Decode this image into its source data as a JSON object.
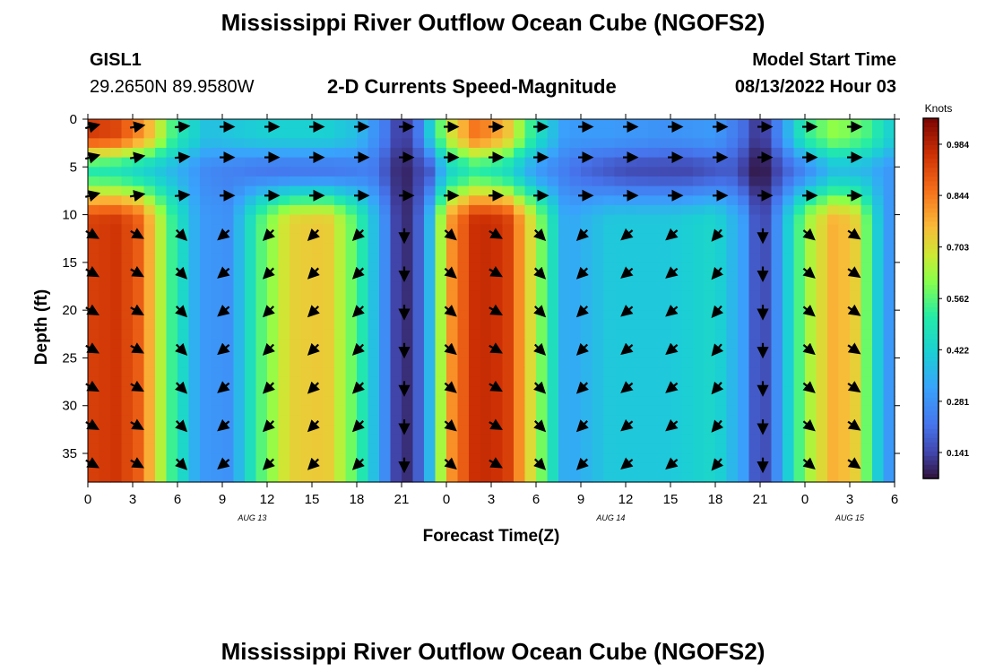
{
  "header": {
    "title": "Mississippi River Outflow Ocean Cube (NGOFS2)",
    "station": "GISL1",
    "coords": "29.2650N  89.9580W",
    "subtitle": "2-D Currents Speed-Magnitude",
    "model_label": "Model Start Time",
    "model_time": "08/13/2022 Hour 03",
    "footer_title": "Mississippi River Outflow Ocean Cube (NGOFS2)"
  },
  "chart_data": {
    "type": "heatmap",
    "xlabel": "Forecast Time(Z)",
    "ylabel": "Depth (ft)",
    "xlim": [
      0,
      54
    ],
    "ylim": [
      0,
      38
    ],
    "x_ticks": [
      0,
      3,
      6,
      9,
      12,
      15,
      18,
      21,
      24,
      27,
      30,
      33,
      36,
      39,
      42,
      45,
      48,
      51,
      54
    ],
    "x_tick_labels": [
      "0",
      "3",
      "6",
      "9",
      "12",
      "15",
      "18",
      "21",
      "0",
      "3",
      "6",
      "9",
      "12",
      "15",
      "18",
      "21",
      "0",
      "3",
      "6"
    ],
    "y_ticks": [
      0,
      5,
      10,
      15,
      20,
      25,
      30,
      35
    ],
    "y_tick_labels": [
      "0",
      "5",
      "10",
      "15",
      "20",
      "25",
      "30",
      "35"
    ],
    "date_labels": [
      {
        "text": "AUG 13",
        "x": 11
      },
      {
        "text": "AUG 14",
        "x": 35
      },
      {
        "text": "AUG 15",
        "x": 51
      }
    ],
    "colorbar": {
      "unit": "Knots",
      "min": 0.07,
      "max": 1.055,
      "tick_values": [
        0.141,
        0.281,
        0.422,
        0.562,
        0.703,
        0.844,
        0.984
      ],
      "tick_labels": [
        "0.141",
        "0.281",
        "0.422",
        "0.562",
        "0.703",
        "0.844",
        "0.984"
      ]
    },
    "time_profile": [
      [
        0,
        0.93
      ],
      [
        2,
        0.95
      ],
      [
        3.5,
        0.88
      ],
      [
        5.5,
        0.55
      ],
      [
        7.5,
        0.3
      ],
      [
        9.5,
        0.28
      ],
      [
        11.5,
        0.55
      ],
      [
        13.5,
        0.72
      ],
      [
        16,
        0.74
      ],
      [
        18,
        0.55
      ],
      [
        20,
        0.25
      ],
      [
        21,
        0.07
      ],
      [
        22.5,
        0.22
      ],
      [
        24,
        0.78
      ],
      [
        26,
        0.97
      ],
      [
        28,
        0.95
      ],
      [
        30,
        0.65
      ],
      [
        32,
        0.32
      ],
      [
        35,
        0.4
      ],
      [
        39,
        0.4
      ],
      [
        42,
        0.44
      ],
      [
        44,
        0.3
      ],
      [
        45,
        0.1
      ],
      [
        46,
        0.25
      ],
      [
        48,
        0.62
      ],
      [
        50,
        0.78
      ],
      [
        51.5,
        0.72
      ],
      [
        53,
        0.38
      ],
      [
        54,
        0.25
      ]
    ],
    "surface_profile": [
      [
        0,
        0.94
      ],
      [
        2,
        0.92
      ],
      [
        4,
        0.78
      ],
      [
        6,
        0.5
      ],
      [
        8,
        0.38
      ],
      [
        10,
        0.4
      ],
      [
        12,
        0.42
      ],
      [
        14,
        0.42
      ],
      [
        16,
        0.42
      ],
      [
        18,
        0.38
      ],
      [
        20,
        0.22
      ],
      [
        21,
        0.1
      ],
      [
        22,
        0.2
      ],
      [
        24,
        0.66
      ],
      [
        26,
        0.86
      ],
      [
        28,
        0.76
      ],
      [
        30,
        0.48
      ],
      [
        32,
        0.3
      ],
      [
        35,
        0.3
      ],
      [
        39,
        0.28
      ],
      [
        42,
        0.3
      ],
      [
        44,
        0.2
      ],
      [
        45,
        0.09
      ],
      [
        46,
        0.22
      ],
      [
        48,
        0.52
      ],
      [
        50,
        0.62
      ],
      [
        52,
        0.56
      ],
      [
        54,
        0.4
      ]
    ],
    "mid_profile": [
      [
        0,
        0.5
      ],
      [
        2,
        0.48
      ],
      [
        4,
        0.42
      ],
      [
        6,
        0.35
      ],
      [
        8,
        0.26
      ],
      [
        12,
        0.22
      ],
      [
        16,
        0.22
      ],
      [
        19,
        0.24
      ],
      [
        21,
        0.08
      ],
      [
        23,
        0.18
      ],
      [
        24,
        0.42
      ],
      [
        26,
        0.52
      ],
      [
        28,
        0.46
      ],
      [
        30,
        0.3
      ],
      [
        33,
        0.2
      ],
      [
        36,
        0.15
      ],
      [
        40,
        0.14
      ],
      [
        43,
        0.18
      ],
      [
        45,
        0.06
      ],
      [
        47,
        0.2
      ],
      [
        50,
        0.38
      ],
      [
        52,
        0.36
      ],
      [
        54,
        0.28
      ]
    ],
    "arrow_x": [
      0,
      3,
      6,
      9,
      12,
      15,
      18,
      21,
      24,
      27,
      30,
      33,
      36,
      39,
      42,
      45,
      48,
      51
    ],
    "arrow_depths": [
      0.8,
      4,
      8,
      12,
      16,
      20,
      24,
      28,
      32,
      36
    ],
    "arrow_dir_deep": [
      -30,
      -30,
      -45,
      -140,
      -135,
      -135,
      -135,
      -90,
      -40,
      -30,
      -45,
      -135,
      -140,
      -140,
      -130,
      -90,
      -40,
      -35
    ],
    "arrow_dir_upper": [
      15,
      10,
      5,
      0,
      0,
      0,
      0,
      0,
      0,
      0,
      0,
      0,
      0,
      0,
      0,
      0,
      0,
      0
    ]
  }
}
